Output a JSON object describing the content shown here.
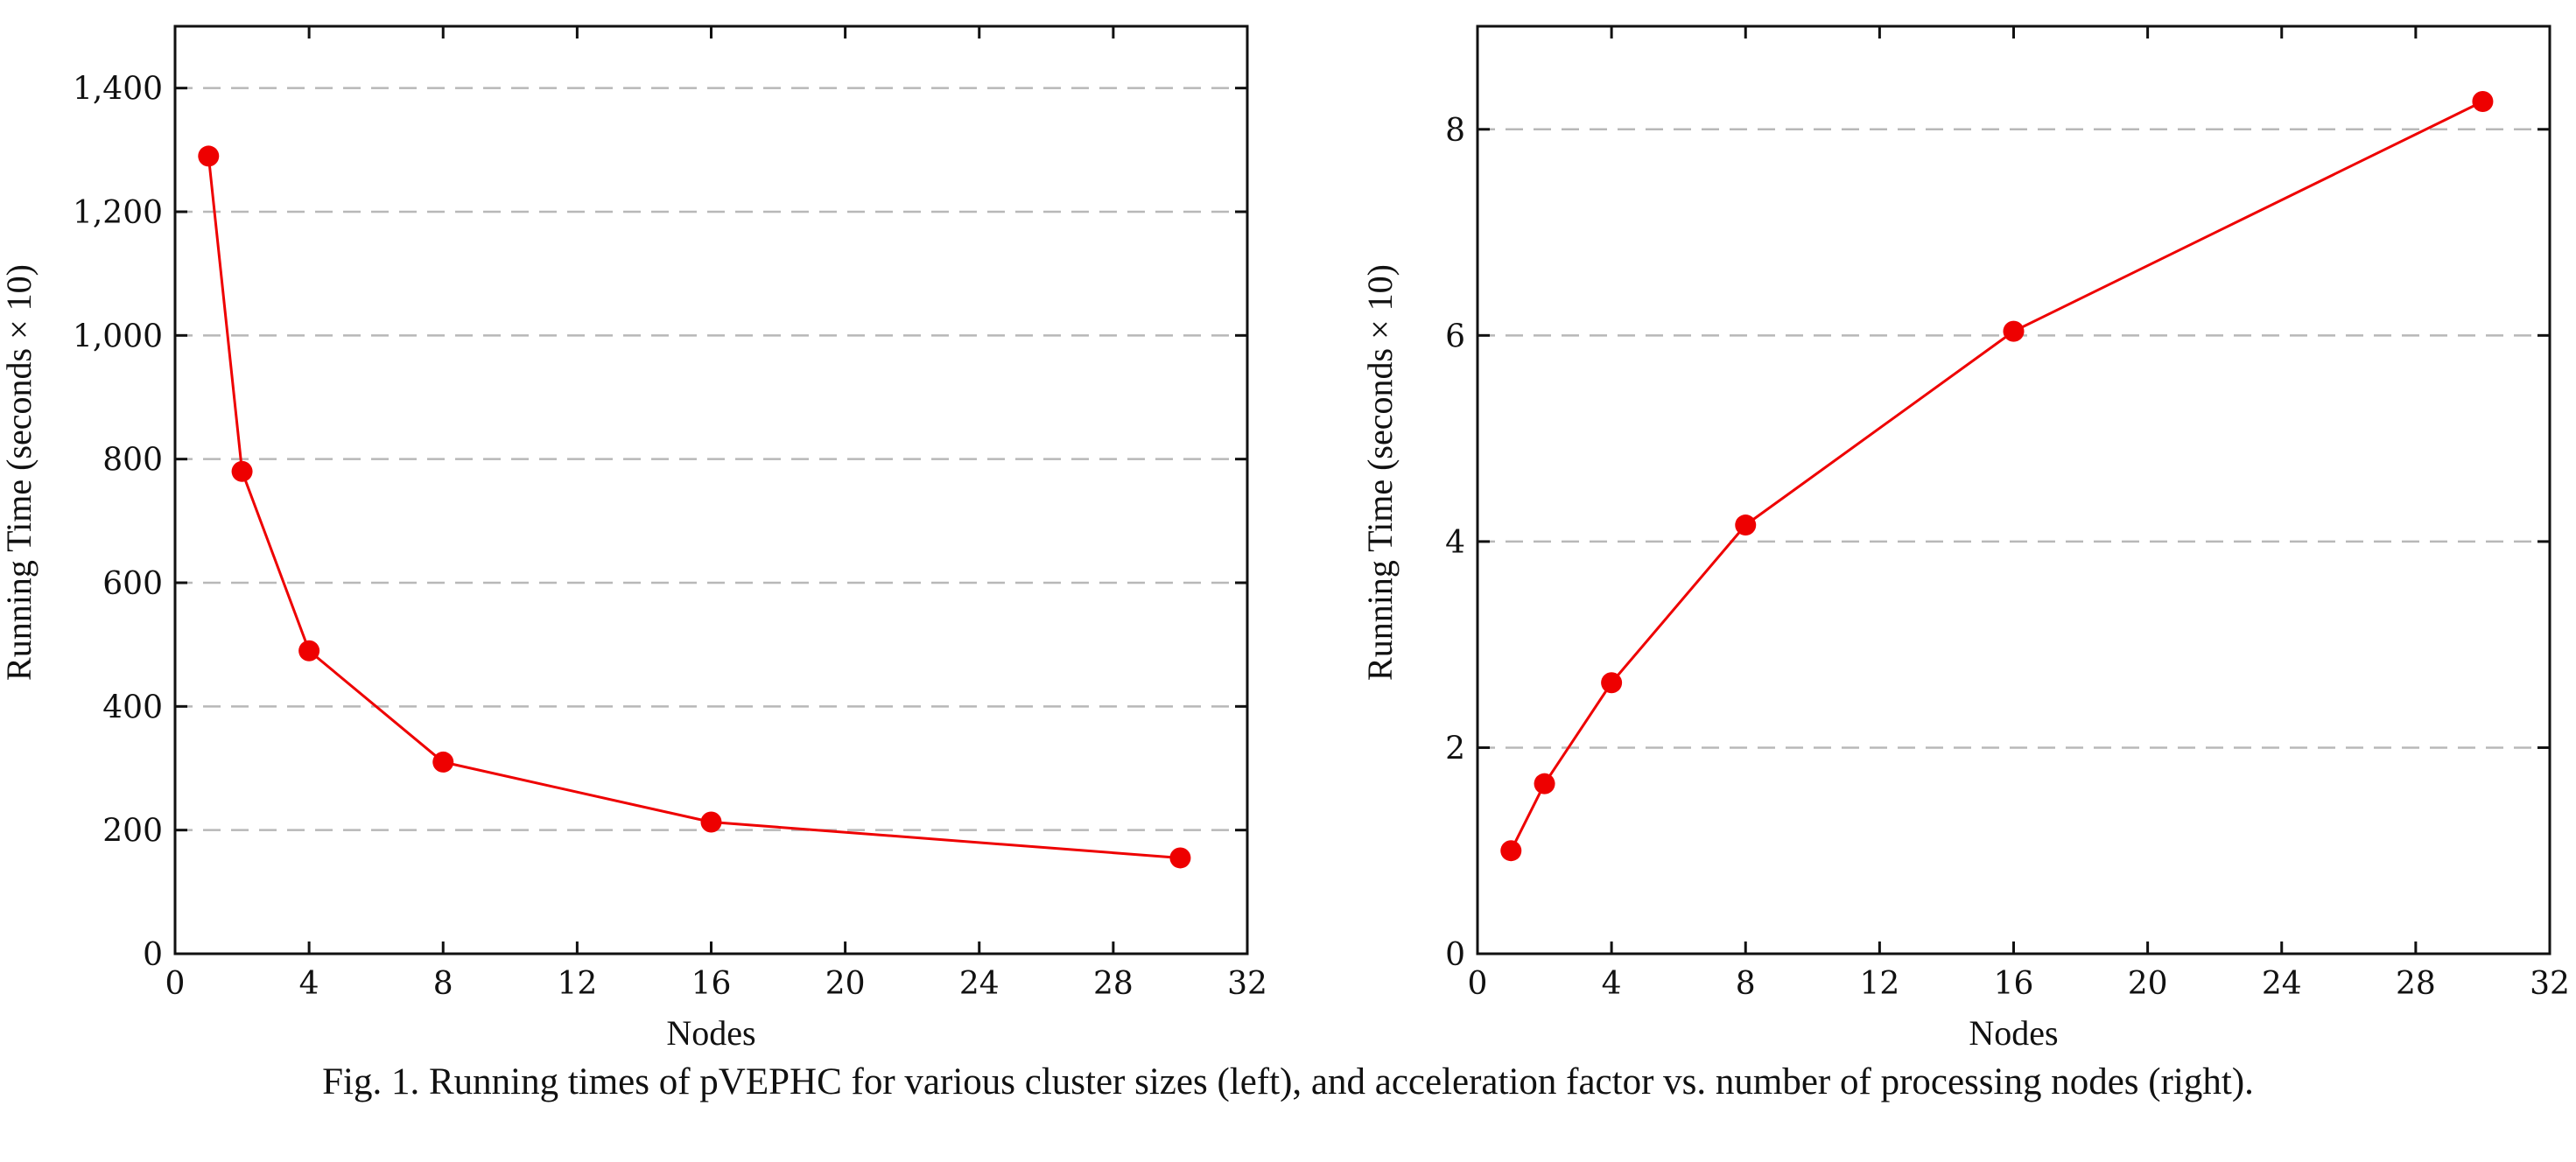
{
  "chart_data": [
    {
      "type": "line",
      "xlabel": "Nodes",
      "ylabel": "Running Time (seconds × 10)",
      "xlim": [
        0,
        32
      ],
      "ylim": [
        0,
        1500
      ],
      "xticks": [
        0,
        4,
        8,
        12,
        16,
        20,
        24,
        28,
        32
      ],
      "yticks": [
        0,
        200,
        400,
        600,
        800,
        1000,
        1200,
        1400
      ],
      "ytick_labels": [
        "0",
        "200",
        "400",
        "600",
        "800",
        "1,000",
        "1,200",
        "1,400"
      ],
      "grid": "horizontal dashed",
      "series": [
        {
          "color": "#ee0000",
          "marker": "circle",
          "x": [
            1,
            2,
            4,
            8,
            16,
            30
          ],
          "y": [
            1290,
            780,
            490,
            310,
            213,
            155
          ]
        }
      ]
    },
    {
      "type": "line",
      "xlabel": "Nodes",
      "ylabel": "Running Time (seconds × 10)",
      "xlim": [
        0,
        32
      ],
      "ylim": [
        0,
        9
      ],
      "xticks": [
        0,
        4,
        8,
        12,
        16,
        20,
        24,
        28,
        32
      ],
      "yticks": [
        0,
        2,
        4,
        6,
        8
      ],
      "ytick_labels": [
        "0",
        "2",
        "4",
        "6",
        "8"
      ],
      "grid": "horizontal dashed",
      "series": [
        {
          "color": "#ee0000",
          "marker": "circle",
          "x": [
            1,
            2,
            4,
            8,
            16,
            30
          ],
          "y": [
            1.0,
            1.65,
            2.63,
            4.16,
            6.04,
            8.27
          ]
        }
      ]
    }
  ],
  "caption": "Fig. 1.  Running times of pVEPHC for various cluster sizes (left), and acceleration factor vs. number of processing nodes (right)."
}
